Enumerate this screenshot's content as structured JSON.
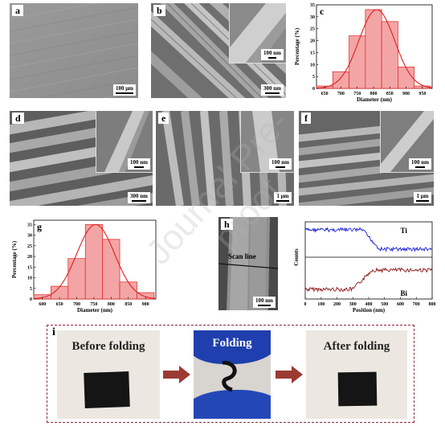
{
  "panels": {
    "a": {
      "label": "a",
      "scale": "100 μm"
    },
    "b": {
      "label": "b",
      "scale": "300 nm",
      "inset_scale": "100 nm"
    },
    "d": {
      "label": "d",
      "scale": "300 nm",
      "inset_scale": "100 nm"
    },
    "e": {
      "label": "e",
      "scale": "1 μm",
      "inset_scale": "100 nm"
    },
    "f": {
      "label": "f",
      "scale": "1 μm",
      "inset_scale": "100 nm"
    },
    "h": {
      "label": "h",
      "scale": "100 nm",
      "scan_line": "Scan line"
    },
    "i": {
      "label": "i"
    }
  },
  "folding": {
    "before": "Before folding",
    "during": "Folding",
    "after": "After folding",
    "arrow_color": "#9b3a33",
    "border_color": "#8b2a3a"
  },
  "watermark": "Journal Pre-proof",
  "chart_data": [
    {
      "id": "c",
      "label": "c",
      "type": "bar",
      "xlabel": "Diameter (nm)",
      "ylabel": "Percentage (%)",
      "bin_centers": [
        650,
        700,
        750,
        800,
        850,
        900,
        950
      ],
      "bin_width": 50,
      "values": [
        1,
        7,
        22,
        33,
        28,
        9,
        1
      ],
      "fit_peak": 810,
      "fit_sigma": 55,
      "fit_amplitude": 33,
      "xlim": [
        625,
        980
      ],
      "ylim": [
        0,
        35
      ],
      "xticks": [
        650,
        700,
        750,
        800,
        850,
        900,
        950
      ],
      "yticks": [
        0,
        5,
        10,
        15,
        20,
        25,
        30,
        35
      ],
      "bar_color": "#f3a5a5",
      "edge_color": "#e02020",
      "fit_color": "#e02020"
    },
    {
      "id": "g",
      "label": "g",
      "type": "bar",
      "xlabel": "Diameter (nm)",
      "ylabel": "Percentage (%)",
      "bin_centers": [
        600,
        650,
        700,
        750,
        800,
        850,
        900
      ],
      "bin_width": 50,
      "values": [
        2,
        6,
        19,
        35,
        28,
        8,
        3
      ],
      "fit_peak": 755,
      "fit_sigma": 55,
      "fit_amplitude": 35,
      "xlim": [
        575,
        930
      ],
      "ylim": [
        0,
        37
      ],
      "xticks": [
        600,
        650,
        700,
        750,
        800,
        850,
        900
      ],
      "yticks": [
        0,
        5,
        10,
        15,
        20,
        25,
        30,
        35
      ],
      "bar_color": "#f3a5a5",
      "edge_color": "#e02020",
      "fit_color": "#e02020"
    },
    {
      "id": "linescan",
      "type": "line",
      "xlabel": "Position (nm)",
      "ylabel": "Counts",
      "xlim": [
        0,
        800
      ],
      "xticks": [
        0,
        100,
        200,
        300,
        400,
        500,
        600,
        700,
        800
      ],
      "series": [
        {
          "name": "Ti",
          "color": "#1a22d6",
          "high_until": 360,
          "low_after": 470
        },
        {
          "name": "Bi",
          "color": "#8c1515",
          "low_until": 300,
          "high_after": 420
        }
      ]
    }
  ]
}
